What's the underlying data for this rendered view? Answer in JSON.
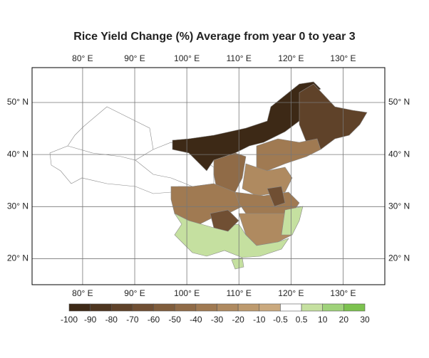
{
  "map_data": {
    "title": "Rice Yield Change (%)  Average from year 0 to year 3",
    "lonlim": [
      70.3,
      138
    ],
    "latlim": [
      15,
      56.7
    ],
    "lon_ticks": [
      {
        "value": 80,
        "label": "80° E"
      },
      {
        "value": 90,
        "label": "90° E"
      },
      {
        "value": 100,
        "label": "100° E"
      },
      {
        "value": 110,
        "label": "110° E"
      },
      {
        "value": 120,
        "label": "120° E"
      },
      {
        "value": 130,
        "label": "130° E"
      }
    ],
    "lat_ticks": [
      {
        "value": 50,
        "label": "50° N"
      },
      {
        "value": 40,
        "label": "40° N"
      },
      {
        "value": 30,
        "label": "30° N"
      },
      {
        "value": 20,
        "label": "20° N"
      }
    ],
    "colorbar": {
      "levels": [
        -100,
        -90,
        -80,
        -70,
        -60,
        -50,
        -40,
        -30,
        -20,
        -10,
        -0.5,
        0.5,
        10,
        20,
        30
      ],
      "colors": [
        "#3d2916",
        "#4e3520",
        "#5f4229",
        "#704f33",
        "#805d3c",
        "#906b47",
        "#a07a52",
        "#af8a60",
        "#bd9a6e",
        "#caa97e",
        "#ffffff",
        "#c5e0a0",
        "#9fd27a",
        "#7cc24f"
      ]
    }
  }
}
